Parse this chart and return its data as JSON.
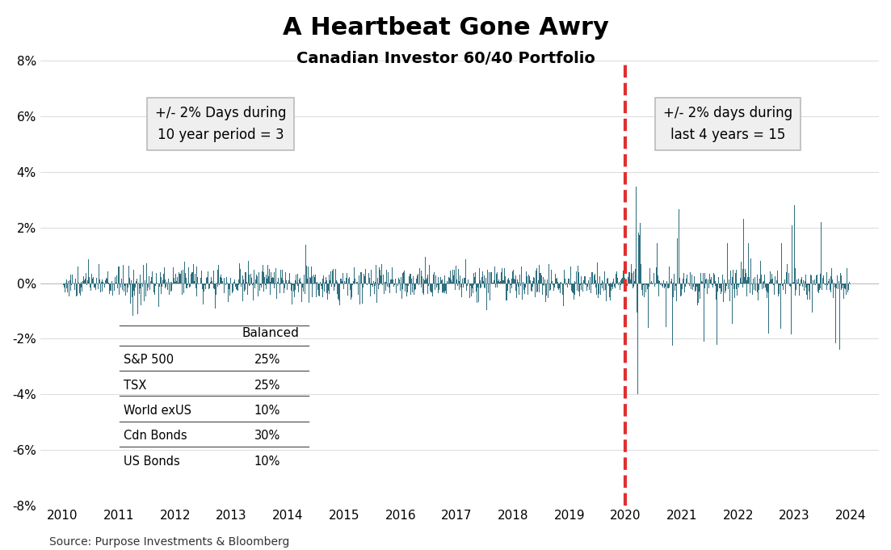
{
  "title": "A Heartbeat Gone Awry",
  "subtitle": "Canadian Investor 60/40 Portfolio",
  "source": "Source: Purpose Investments & Bloomberg",
  "ylim": [
    -0.08,
    0.08
  ],
  "yticks": [
    -0.08,
    -0.06,
    -0.04,
    -0.02,
    0.0,
    0.02,
    0.04,
    0.06,
    0.08
  ],
  "ytick_labels": [
    "-8%",
    "-6%",
    "-4%",
    "-2%",
    "0%",
    "2%",
    "4%",
    "6%",
    "8%"
  ],
  "xstart": 2010,
  "xend": 2024,
  "bar_color": "#2e6e7e",
  "dashed_line_color": "#e03030",
  "dashed_line_x": 2020.0,
  "box1_text": "+/- 2% Days during\n10 year period = 3",
  "box2_text": "+/- 2% days during\nlast 4 years = 15",
  "table_data": [
    [
      "S&P 500",
      "25%"
    ],
    [
      "TSX",
      "25%"
    ],
    [
      "World exUS",
      "10%"
    ],
    [
      "Cdn Bonds",
      "30%"
    ],
    [
      "US Bonds",
      "10%"
    ]
  ],
  "table_header": "Balanced",
  "random_seed": 42,
  "n_days": 5479,
  "background_color": "#ffffff",
  "title_fontsize": 22,
  "subtitle_fontsize": 14,
  "axis_fontsize": 11,
  "source_fontsize": 10
}
